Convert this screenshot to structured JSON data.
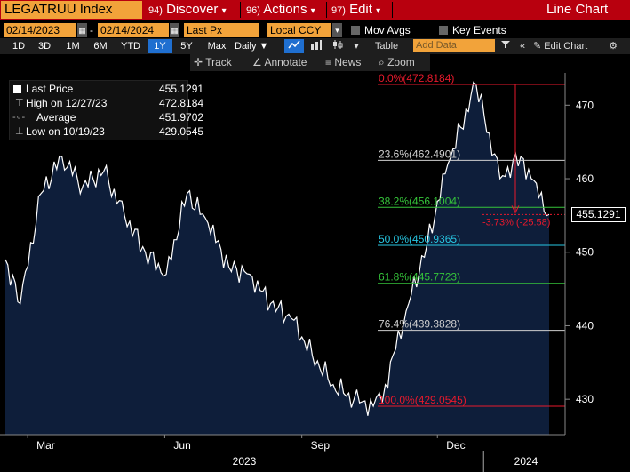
{
  "toolbar1": {
    "ticker": "LEGATRUU Index",
    "menu_discover_num": "94)",
    "menu_discover": "Discover",
    "menu_actions_num": "96)",
    "menu_actions": "Actions",
    "menu_edit_num": "97)",
    "menu_edit": "Edit",
    "dropdown_glyph": "▾",
    "title": "Line Chart"
  },
  "toolbar2": {
    "start_date": "02/14/2023",
    "dash": "-",
    "end_date": "02/14/2024",
    "field": "Last Px",
    "currency": "Local CCY",
    "mov_avgs": "Mov Avgs",
    "key_events": "Key Events"
  },
  "toolbar3": {
    "periods": [
      "1D",
      "3D",
      "1M",
      "6M",
      "YTD",
      "1Y",
      "5Y",
      "Max"
    ],
    "active_period": "1Y",
    "frequency": "Daily",
    "table": "Table",
    "add_data_placeholder": "Add Data",
    "edit_chart": "Edit Chart"
  },
  "toolbar4": {
    "track": "Track",
    "annotate": "Annotate",
    "news": "News",
    "zoom": "Zoom"
  },
  "legend": {
    "last_price_label": "Last Price",
    "last_price_value": "455.1291",
    "high_label": "High on 12/27/23",
    "high_value": "472.8184",
    "average_label": "Average",
    "average_value": "451.9702",
    "low_label": "Low on 10/19/23",
    "low_value": "429.0545"
  },
  "price_label": "455.1291",
  "measure_label": "-3.73% (-25.58)",
  "colors": {
    "orange": "#f2a33a",
    "red_bar": "#b8000e",
    "area_fill": "#0e1e3a",
    "fib_red": "#e8192c",
    "fib_green": "#35c43a",
    "fib_cyan": "#27c7e3",
    "fib_white": "#cfcfcf"
  },
  "chart_data": {
    "type": "area",
    "series": [
      {
        "name": "Last Price",
        "x": [
          "2023-02-14",
          "2023-02-24",
          "2023-03-10",
          "2023-03-24",
          "2023-04-07",
          "2023-04-21",
          "2023-05-05",
          "2023-05-19",
          "2023-06-02",
          "2023-06-16",
          "2023-06-30",
          "2023-07-14",
          "2023-07-28",
          "2023-08-11",
          "2023-08-25",
          "2023-09-08",
          "2023-09-22",
          "2023-10-06",
          "2023-10-19",
          "2023-10-27",
          "2023-11-10",
          "2023-11-24",
          "2023-12-08",
          "2023-12-27",
          "2024-01-12",
          "2024-01-26",
          "2024-02-02",
          "2024-02-14"
        ],
        "values": [
          449,
          443,
          458,
          463,
          459,
          461,
          455,
          450,
          447,
          458,
          454,
          448,
          447,
          443,
          441,
          436,
          432,
          430,
          429.0545,
          432,
          442,
          451,
          462,
          472.8184,
          460,
          463,
          460,
          455.1291
        ]
      }
    ],
    "x_tick_labels": [
      "Mar",
      "Jun",
      "Sep",
      "Dec"
    ],
    "x_year_labels": [
      "2023",
      "2024"
    ],
    "y_ticks": [
      430,
      440,
      450,
      460,
      470
    ],
    "ylim": [
      425,
      476
    ],
    "fibonacci": [
      {
        "label": "0.0%(472.8184)",
        "value": 472.8184,
        "color": "red"
      },
      {
        "label": "23.6%(462.4901)",
        "value": 462.4901,
        "color": "white"
      },
      {
        "label": "38.2%(456.1004)",
        "value": 456.1004,
        "color": "green"
      },
      {
        "label": "50.0%(450.9365)",
        "value": 450.9365,
        "color": "cyan"
      },
      {
        "label": "61.8%(445.7723)",
        "value": 445.7723,
        "color": "green"
      },
      {
        "label": "76.4%(439.3828)",
        "value": 439.3828,
        "color": "white"
      },
      {
        "label": "100.0%(429.0545)",
        "value": 429.0545,
        "color": "red"
      }
    ]
  }
}
